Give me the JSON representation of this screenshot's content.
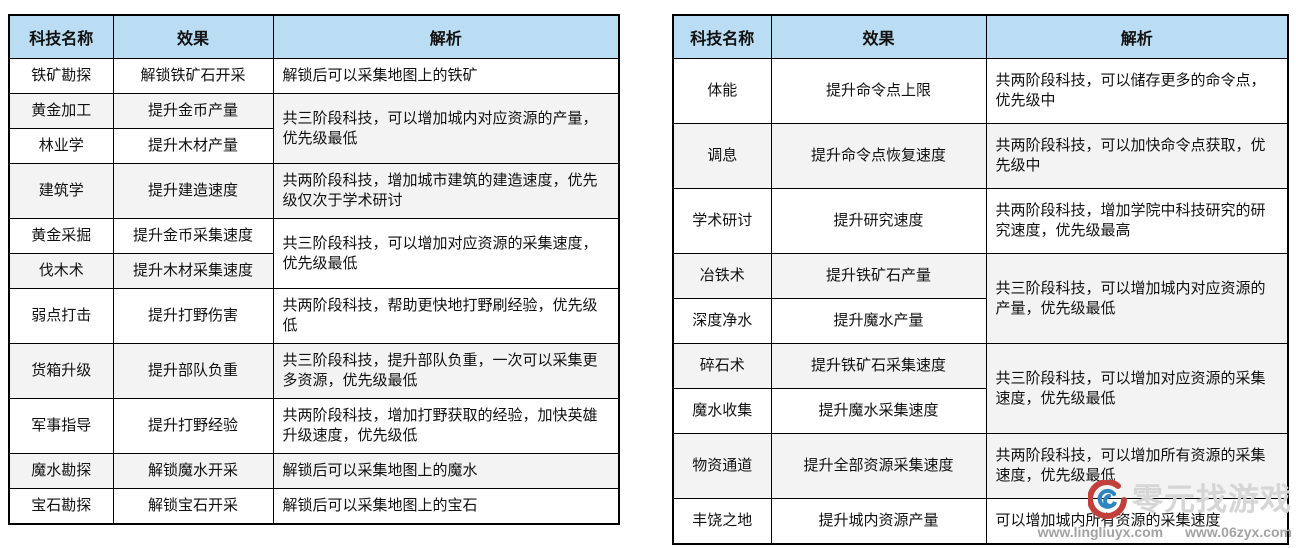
{
  "colors": {
    "header_bg": "#BBDDF3",
    "stripe_bg": "#F3F3F3",
    "border": "#000000",
    "watermark_text": "#D6D6D6",
    "watermark_url": "#A3A3A3",
    "logo_red": "#C2403B",
    "logo_blue": "#2E86C1"
  },
  "tables": [
    {
      "id": "table-left",
      "headers": [
        "科技名称",
        "效果",
        "解析"
      ],
      "rows": [
        {
          "name": "铁矿勘探",
          "effect": "解锁铁矿石开采",
          "analysis": "解锁后可以采集地图上的铁矿",
          "span": 1
        },
        {
          "name": "黄金加工",
          "effect": "提升金币产量",
          "analysis": "共三阶段科技，可以增加城内对应资源的产量，优先级最低",
          "span": 2
        },
        {
          "name": "林业学",
          "effect": "提升木材产量"
        },
        {
          "name": "建筑学",
          "effect": "提升建造速度",
          "analysis": "共两阶段科技，增加城市建筑的建造速度，优先级仅次于学术研讨",
          "span": 1
        },
        {
          "name": "黄金采掘",
          "effect": "提升金币采集速度",
          "analysis": "共三阶段科技，可以增加对应资源的采集速度，优先级最低",
          "span": 2
        },
        {
          "name": "伐木术",
          "effect": "提升木材采集速度"
        },
        {
          "name": "弱点打击",
          "effect": "提升打野伤害",
          "analysis": "共两阶段科技，帮助更快地打野刷经验，优先级低",
          "span": 1
        },
        {
          "name": "货箱升级",
          "effect": "提升部队负重",
          "analysis": "共三阶段科技，提升部队负重，一次可以采集更多资源，优先级最低",
          "span": 1
        },
        {
          "name": "军事指导",
          "effect": "提升打野经验",
          "analysis": "共两阶段科技，增加打野获取的经验，加快英雄升级速度，优先级低",
          "span": 1
        },
        {
          "name": "魔水勘探",
          "effect": "解锁魔水开采",
          "analysis": "解锁后可以采集地图上的魔水",
          "span": 1
        },
        {
          "name": "宝石勘探",
          "effect": "解锁宝石开采",
          "analysis": "解锁后可以采集地图上的宝石",
          "span": 1
        }
      ]
    },
    {
      "id": "table-right",
      "headers": [
        "科技名称",
        "效果",
        "解析"
      ],
      "rows": [
        {
          "name": "体能",
          "effect": "提升命令点上限",
          "analysis": "共两阶段科技，可以储存更多的命令点，优先级中",
          "span": 1
        },
        {
          "name": "调息",
          "effect": "提升命令点恢复速度",
          "analysis": "共两阶段科技，可以加快命令点获取，优先级中",
          "span": 1
        },
        {
          "name": "学术研讨",
          "effect": "提升研究速度",
          "analysis": "共两阶段科技，增加学院中科技研究的研究速度，优先级最高",
          "span": 1
        },
        {
          "name": "冶铁术",
          "effect": "提升铁矿石产量",
          "analysis": "共三阶段科技，可以增加城内对应资源的产量，优先级最低",
          "span": 2
        },
        {
          "name": "深度净水",
          "effect": "提升魔水产量"
        },
        {
          "name": "碎石术",
          "effect": "提升铁矿石采集速度",
          "analysis": "共三阶段科技，可以增加对应资源的采集速度，优先级最低",
          "span": 2
        },
        {
          "name": "魔水收集",
          "effect": "提升魔水采集速度"
        },
        {
          "name": "物资通道",
          "effect": "提升全部资源采集速度",
          "analysis": "共两阶段科技，可以增加所有资源的采集速度，优先级最低",
          "span": 1
        },
        {
          "name": "丰饶之地",
          "effect": "提升城内资源产量",
          "analysis": "可以增加城内所有资源的采集速度",
          "span": 1
        }
      ]
    }
  ],
  "watermark": {
    "brand": "零元找游戏",
    "url1": "www.lingliuyx.com",
    "url2": "www.06zyx.com",
    "logo": "swirl-logo-icon"
  }
}
